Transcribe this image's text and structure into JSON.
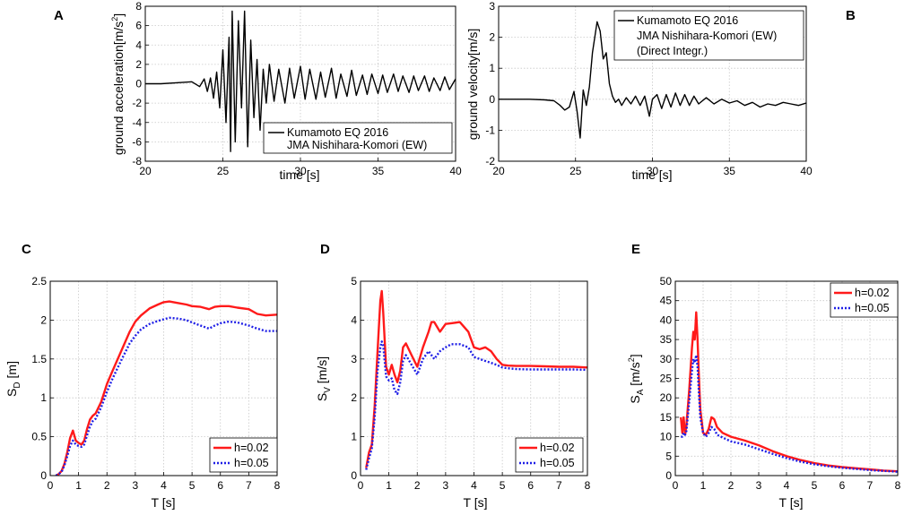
{
  "colors": {
    "h002": "#ff1a1a",
    "h005": "#1f1fe6",
    "trace": "#000000",
    "grid": "#c8c8c8"
  },
  "chart_data": [
    {
      "id": "A",
      "type": "line",
      "panel_label": "A",
      "xlabel": "time [s]",
      "ylabel_parts": [
        "ground acceleration[m/s",
        "2",
        "]"
      ],
      "xlim": [
        20,
        40
      ],
      "ylim": [
        -8,
        8
      ],
      "xticks": [
        20,
        25,
        30,
        35,
        40
      ],
      "yticks": [
        -8,
        -6,
        -4,
        -2,
        0,
        2,
        4,
        6,
        8
      ],
      "grid": true,
      "legend_position": "lower-right",
      "legend_lines": [
        "Kumamoto EQ 2016",
        "JMA Nishihara-Komori (EW)"
      ],
      "series": [
        {
          "name": "Kumamoto EQ 2016 JMA Nishihara-Komori (EW)",
          "style": "solid",
          "color": "trace",
          "x": [
            20,
            21,
            22,
            23,
            23.5,
            23.8,
            24,
            24.2,
            24.4,
            24.6,
            24.8,
            25,
            25.2,
            25.4,
            25.5,
            25.6,
            25.8,
            26,
            26.2,
            26.4,
            26.6,
            26.8,
            27,
            27.2,
            27.4,
            27.6,
            27.8,
            28,
            28.3,
            28.6,
            29,
            29.3,
            29.6,
            30,
            30.3,
            30.6,
            31,
            31.3,
            31.6,
            32,
            32.3,
            32.6,
            33,
            33.3,
            33.6,
            34,
            34.3,
            34.6,
            35,
            35.3,
            35.6,
            36,
            36.3,
            36.6,
            37,
            37.3,
            37.6,
            38,
            38.3,
            38.6,
            39,
            39.3,
            39.6,
            40
          ],
          "y": [
            0,
            0,
            0.1,
            0.2,
            -0.3,
            0.5,
            -0.8,
            0.6,
            -1.5,
            1.2,
            -2.5,
            3.5,
            -4,
            4.8,
            -7,
            7.5,
            -6,
            6.5,
            -2.5,
            7.5,
            -6.5,
            4.5,
            -3.5,
            2.5,
            -4.8,
            1.5,
            -2,
            2,
            -1.8,
            1.5,
            -2,
            1.6,
            -1.5,
            1.8,
            -1.6,
            1.5,
            -1.6,
            1.2,
            -1.4,
            1.6,
            -1.5,
            1,
            -1.3,
            1.4,
            -1.2,
            0.9,
            -1.1,
            1,
            -1,
            0.9,
            -0.9,
            1,
            -0.8,
            0.8,
            -0.9,
            0.8,
            -0.7,
            0.8,
            -0.8,
            0.6,
            -0.7,
            0.7,
            -0.6,
            0.5
          ]
        }
      ]
    },
    {
      "id": "B",
      "type": "line",
      "panel_label": "B",
      "xlabel": "time [s]",
      "ylabel": "ground velocity[m/s]",
      "xlim": [
        20,
        40
      ],
      "ylim": [
        -2,
        3
      ],
      "xticks": [
        20,
        25,
        30,
        35,
        40
      ],
      "yticks": [
        -2,
        -1,
        0,
        1,
        2,
        3
      ],
      "grid": true,
      "legend_position": "top-right",
      "legend_lines": [
        "Kumamoto EQ 2016",
        "JMA Nishihara-Komori (EW)",
        "(Direct Integr.)"
      ],
      "series": [
        {
          "name": "Kumamoto EQ 2016 JMA Nishihara-Komori (EW) (Direct Integr.)",
          "style": "solid",
          "color": "trace",
          "x": [
            20,
            22,
            23,
            23.6,
            24,
            24.3,
            24.6,
            24.9,
            25.1,
            25.3,
            25.5,
            25.7,
            25.9,
            26.1,
            26.4,
            26.6,
            26.8,
            27,
            27.2,
            27.4,
            27.6,
            27.8,
            28,
            28.3,
            28.6,
            28.9,
            29.2,
            29.5,
            29.8,
            30,
            30.3,
            30.6,
            30.9,
            31.2,
            31.5,
            31.8,
            32.1,
            32.4,
            32.7,
            33,
            33.5,
            34,
            34.5,
            35,
            35.5,
            36,
            36.5,
            37,
            37.5,
            38,
            38.5,
            39,
            39.5,
            40
          ],
          "y": [
            0,
            0,
            -0.02,
            -0.05,
            -0.2,
            -0.35,
            -0.25,
            0.25,
            -0.4,
            -1.25,
            0.3,
            -0.2,
            0.4,
            1.5,
            2.5,
            2.2,
            1.3,
            1.5,
            0.5,
            0.1,
            -0.1,
            0,
            -0.2,
            0.05,
            -0.15,
            0.1,
            -0.2,
            0.1,
            -0.55,
            0,
            0.15,
            -0.3,
            0.15,
            -0.25,
            0.2,
            -0.2,
            0.15,
            -0.2,
            0.1,
            -0.15,
            0.05,
            -0.15,
            0,
            -0.12,
            -0.05,
            -0.2,
            -0.1,
            -0.25,
            -0.15,
            -0.2,
            -0.1,
            -0.15,
            -0.2,
            -0.12
          ]
        }
      ]
    },
    {
      "id": "C",
      "type": "line",
      "panel_label": "C",
      "xlabel": "T [s]",
      "ylabel_main": "S",
      "ylabel_sub": "D",
      "ylabel_unit": " [m]",
      "xlim": [
        0,
        8
      ],
      "ylim": [
        0,
        2.5
      ],
      "xticks": [
        0,
        1,
        2,
        3,
        4,
        5,
        6,
        7,
        8
      ],
      "yticks": [
        0,
        0.5,
        1,
        1.5,
        2,
        2.5
      ],
      "grid": true,
      "legend_position": "lower-right",
      "series": [
        {
          "name": "h=0.02",
          "style": "solid",
          "color": "h002",
          "x": [
            0.2,
            0.3,
            0.4,
            0.5,
            0.6,
            0.7,
            0.8,
            0.9,
            1.0,
            1.1,
            1.2,
            1.3,
            1.4,
            1.5,
            1.6,
            1.8,
            2.0,
            2.2,
            2.5,
            2.8,
            3.0,
            3.2,
            3.5,
            3.8,
            4.0,
            4.2,
            4.5,
            4.8,
            5.0,
            5.3,
            5.6,
            5.8,
            6.0,
            6.3,
            6.6,
            7.0,
            7.3,
            7.6,
            8.0
          ],
          "y": [
            0,
            0.02,
            0.06,
            0.15,
            0.3,
            0.48,
            0.58,
            0.45,
            0.42,
            0.4,
            0.45,
            0.6,
            0.72,
            0.77,
            0.8,
            0.95,
            1.18,
            1.35,
            1.6,
            1.85,
            1.98,
            2.06,
            2.15,
            2.2,
            2.23,
            2.24,
            2.22,
            2.2,
            2.18,
            2.17,
            2.14,
            2.17,
            2.18,
            2.18,
            2.16,
            2.14,
            2.08,
            2.06,
            2.07
          ]
        },
        {
          "name": "h=0.05",
          "style": "dotted",
          "color": "h005",
          "x": [
            0.2,
            0.3,
            0.4,
            0.5,
            0.6,
            0.7,
            0.8,
            0.9,
            1.0,
            1.1,
            1.2,
            1.3,
            1.4,
            1.5,
            1.6,
            1.8,
            2.0,
            2.2,
            2.5,
            2.8,
            3.0,
            3.2,
            3.5,
            3.8,
            4.0,
            4.2,
            4.5,
            4.8,
            5.0,
            5.3,
            5.6,
            5.8,
            6.0,
            6.3,
            6.6,
            7.0,
            7.3,
            7.6,
            8.0
          ],
          "y": [
            0,
            0.02,
            0.05,
            0.13,
            0.25,
            0.38,
            0.45,
            0.4,
            0.38,
            0.37,
            0.4,
            0.52,
            0.63,
            0.7,
            0.73,
            0.88,
            1.08,
            1.25,
            1.48,
            1.7,
            1.8,
            1.88,
            1.95,
            1.99,
            2.01,
            2.03,
            2.02,
            2.0,
            1.97,
            1.93,
            1.89,
            1.93,
            1.96,
            1.98,
            1.97,
            1.93,
            1.89,
            1.86,
            1.86
          ]
        }
      ]
    },
    {
      "id": "D",
      "type": "line",
      "panel_label": "D",
      "xlabel": "T [s]",
      "ylabel_main": "S",
      "ylabel_sub": "V",
      "ylabel_unit": " [m/s]",
      "xlim": [
        0,
        8
      ],
      "ylim": [
        0,
        5
      ],
      "xticks": [
        0,
        1,
        2,
        3,
        4,
        5,
        6,
        7,
        8
      ],
      "yticks": [
        0,
        1,
        2,
        3,
        4,
        5
      ],
      "grid": true,
      "legend_position": "lower-right",
      "series": [
        {
          "name": "h=0.02",
          "style": "solid",
          "color": "h002",
          "x": [
            0.2,
            0.3,
            0.4,
            0.5,
            0.6,
            0.7,
            0.75,
            0.8,
            0.9,
            1.0,
            1.1,
            1.2,
            1.3,
            1.4,
            1.5,
            1.6,
            1.8,
            2.0,
            2.2,
            2.4,
            2.5,
            2.6,
            2.8,
            3.0,
            3.2,
            3.5,
            3.8,
            4.0,
            4.2,
            4.4,
            4.6,
            4.8,
            5.0,
            5.2,
            5.5,
            6.0,
            6.5,
            7.0,
            7.5,
            8.0
          ],
          "y": [
            0.2,
            0.6,
            0.8,
            1.8,
            3.2,
            4.5,
            4.75,
            4.2,
            2.8,
            2.6,
            2.85,
            2.6,
            2.4,
            2.7,
            3.3,
            3.4,
            3.1,
            2.8,
            3.3,
            3.7,
            3.95,
            3.95,
            3.7,
            3.9,
            3.92,
            3.95,
            3.7,
            3.3,
            3.25,
            3.3,
            3.2,
            3.0,
            2.85,
            2.83,
            2.82,
            2.82,
            2.81,
            2.8,
            2.8,
            2.78
          ]
        },
        {
          "name": "h=0.05",
          "style": "dotted",
          "color": "h005",
          "x": [
            0.2,
            0.3,
            0.4,
            0.5,
            0.6,
            0.7,
            0.75,
            0.8,
            0.9,
            1.0,
            1.1,
            1.2,
            1.3,
            1.4,
            1.5,
            1.6,
            1.8,
            2.0,
            2.2,
            2.4,
            2.5,
            2.6,
            2.8,
            3.0,
            3.2,
            3.5,
            3.8,
            4.0,
            4.2,
            4.4,
            4.6,
            4.8,
            5.0,
            5.2,
            5.5,
            6.0,
            6.5,
            7.0,
            7.5,
            8.0
          ],
          "y": [
            0.15,
            0.45,
            0.7,
            1.5,
            2.7,
            3.3,
            3.45,
            3.35,
            2.55,
            2.45,
            2.5,
            2.2,
            2.1,
            2.4,
            2.95,
            3.1,
            2.85,
            2.6,
            3.0,
            3.2,
            3.1,
            3.0,
            3.2,
            3.3,
            3.38,
            3.38,
            3.3,
            3.05,
            3.0,
            2.95,
            2.9,
            2.85,
            2.78,
            2.76,
            2.74,
            2.73,
            2.73,
            2.73,
            2.73,
            2.72
          ]
        }
      ]
    },
    {
      "id": "E",
      "type": "line",
      "panel_label": "E",
      "xlabel": "T [s]",
      "ylabel_main": "S",
      "ylabel_sub": "A",
      "ylabel_unit": " [m/s",
      "ylabel_sup": "2",
      "ylabel_close": "]",
      "xlim": [
        0,
        8
      ],
      "ylim": [
        0,
        50
      ],
      "xticks": [
        0,
        1,
        2,
        3,
        4,
        5,
        6,
        7,
        8
      ],
      "yticks": [
        0,
        5,
        10,
        15,
        20,
        25,
        30,
        35,
        40,
        45,
        50
      ],
      "grid": true,
      "legend_position": "top-right",
      "series": [
        {
          "name": "h=0.02",
          "style": "solid",
          "color": "h002",
          "x": [
            0.2,
            0.25,
            0.3,
            0.35,
            0.4,
            0.5,
            0.6,
            0.65,
            0.7,
            0.75,
            0.8,
            0.85,
            0.9,
            1.0,
            1.1,
            1.2,
            1.3,
            1.4,
            1.5,
            1.7,
            2.0,
            2.5,
            3.0,
            3.5,
            4.0,
            4.5,
            5.0,
            5.5,
            6.0,
            6.5,
            7.0,
            7.5,
            8.0
          ],
          "y": [
            15,
            11,
            15,
            10.5,
            13,
            22,
            33,
            37,
            35,
            42,
            35,
            25,
            17,
            11,
            10.5,
            12,
            15,
            14.5,
            12.5,
            11,
            10,
            9,
            7.8,
            6.3,
            5,
            4,
            3.2,
            2.6,
            2.2,
            1.9,
            1.6,
            1.3,
            1.1
          ]
        },
        {
          "name": "h=0.05",
          "style": "dotted",
          "color": "h005",
          "x": [
            0.2,
            0.25,
            0.3,
            0.35,
            0.4,
            0.5,
            0.6,
            0.65,
            0.7,
            0.75,
            0.8,
            0.85,
            0.9,
            1.0,
            1.1,
            1.2,
            1.3,
            1.4,
            1.5,
            1.7,
            2.0,
            2.5,
            3.0,
            3.5,
            4.0,
            4.5,
            5.0,
            5.5,
            6.0,
            6.5,
            7.0,
            7.5,
            8.0
          ],
          "y": [
            10,
            10,
            11,
            10.5,
            11.5,
            19,
            27,
            30,
            29,
            31,
            28,
            21,
            15,
            11,
            10,
            11,
            12.5,
            12,
            10.5,
            9.8,
            8.8,
            8,
            6.8,
            5.6,
            4.5,
            3.6,
            2.9,
            2.4,
            2,
            1.7,
            1.4,
            1.2,
            1.0
          ]
        }
      ]
    }
  ]
}
